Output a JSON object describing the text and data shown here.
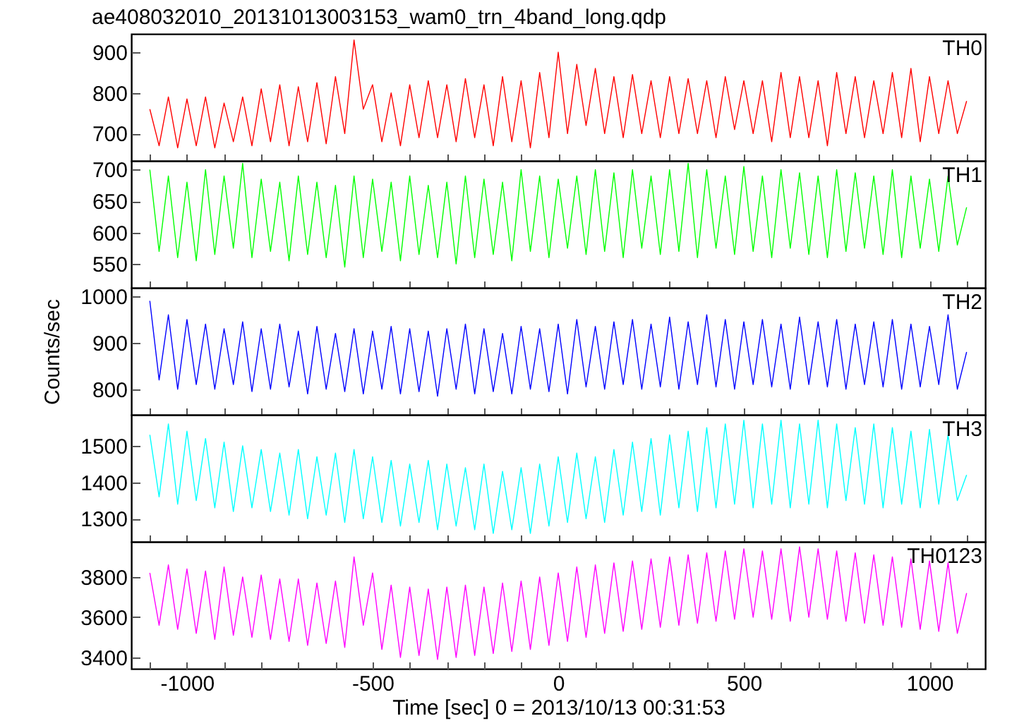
{
  "chart_data": [
    {
      "type": "line",
      "title": "ae408032010_20131013003153_wam0_trn_4band_long.qdp",
      "tick_labels": "y",
      "xlim": [
        -1150,
        1150
      ],
      "ylim": [
        633,
        945
      ],
      "yticks": [
        700,
        800,
        900
      ],
      "xticks": [
        {
          "value": -1100,
          "label": null
        },
        -1000,
        {
          "value": -900,
          "label": null
        },
        {
          "value": -800,
          "label": null
        },
        {
          "value": -700,
          "label": null
        },
        {
          "value": -600,
          "label": null
        },
        -500,
        {
          "value": -400,
          "label": null
        },
        {
          "value": -300,
          "label": null
        },
        {
          "value": -200,
          "label": null
        },
        {
          "value": -100,
          "label": null
        },
        0,
        {
          "value": 100,
          "label": null
        },
        {
          "value": 200,
          "label": null
        },
        {
          "value": 300,
          "label": null
        },
        {
          "value": 400,
          "label": null
        },
        500,
        {
          "value": 600,
          "label": null
        },
        {
          "value": 700,
          "label": null
        },
        {
          "value": 800,
          "label": null
        },
        {
          "value": 900,
          "label": null
        },
        1000,
        {
          "value": 1100,
          "label": null
        }
      ],
      "x": [
        -1100,
        -1075,
        -1050,
        -1025,
        -1000,
        -975,
        -950,
        -925,
        -900,
        -875,
        -850,
        -825,
        -800,
        -775,
        -750,
        -725,
        -700,
        -675,
        -650,
        -625,
        -600,
        -575,
        -550,
        -525,
        -500,
        -475,
        -450,
        -425,
        -400,
        -375,
        -350,
        -325,
        -300,
        -275,
        -250,
        -225,
        -200,
        -175,
        -150,
        -125,
        -100,
        -75,
        -50,
        -25,
        0,
        25,
        50,
        75,
        100,
        125,
        150,
        175,
        200,
        225,
        250,
        275,
        300,
        325,
        350,
        375,
        400,
        425,
        450,
        475,
        500,
        525,
        550,
        575,
        600,
        625,
        650,
        675,
        700,
        725,
        750,
        775,
        800,
        825,
        850,
        875,
        900,
        925,
        950,
        975,
        1000,
        1025,
        1050,
        1075,
        1100
      ],
      "series": [
        {
          "name": "TH0",
          "color": "#ff0000",
          "values": [
            760,
            670,
            790,
            665,
            785,
            670,
            790,
            665,
            775,
            680,
            790,
            670,
            810,
            680,
            820,
            670,
            815,
            680,
            825,
            675,
            840,
            700,
            930,
            760,
            820,
            680,
            800,
            670,
            820,
            690,
            830,
            690,
            820,
            680,
            835,
            690,
            820,
            670,
            840,
            680,
            830,
            665,
            850,
            690,
            900,
            700,
            870,
            720,
            860,
            700,
            840,
            690,
            845,
            700,
            830,
            690,
            840,
            700,
            835,
            700,
            830,
            690,
            840,
            710,
            830,
            700,
            830,
            680,
            850,
            690,
            840,
            690,
            830,
            670,
            850,
            700,
            840,
            690,
            830,
            700,
            850,
            690,
            860,
            680,
            840,
            700,
            830,
            700,
            780
          ]
        }
      ]
    },
    {
      "type": "line",
      "tick_labels": "y",
      "xlim": [
        -1150,
        1150
      ],
      "ylim": [
        512,
        714
      ],
      "yticks": [
        550,
        600,
        650,
        700
      ],
      "xticks": [
        {
          "value": -1100,
          "label": null
        },
        -1000,
        {
          "value": -900,
          "label": null
        },
        {
          "value": -800,
          "label": null
        },
        {
          "value": -700,
          "label": null
        },
        {
          "value": -600,
          "label": null
        },
        -500,
        {
          "value": -400,
          "label": null
        },
        {
          "value": -300,
          "label": null
        },
        {
          "value": -200,
          "label": null
        },
        {
          "value": -100,
          "label": null
        },
        0,
        {
          "value": 100,
          "label": null
        },
        {
          "value": 200,
          "label": null
        },
        {
          "value": 300,
          "label": null
        },
        {
          "value": 400,
          "label": null
        },
        500,
        {
          "value": 600,
          "label": null
        },
        {
          "value": 700,
          "label": null
        },
        {
          "value": 800,
          "label": null
        },
        {
          "value": 900,
          "label": null
        },
        1000,
        {
          "value": 1100,
          "label": null
        }
      ],
      "x": [
        -1100,
        -1075,
        -1050,
        -1025,
        -1000,
        -975,
        -950,
        -925,
        -900,
        -875,
        -850,
        -825,
        -800,
        -775,
        -750,
        -725,
        -700,
        -675,
        -650,
        -625,
        -600,
        -575,
        -550,
        -525,
        -500,
        -475,
        -450,
        -425,
        -400,
        -375,
        -350,
        -325,
        -300,
        -275,
        -250,
        -225,
        -200,
        -175,
        -150,
        -125,
        -100,
        -75,
        -50,
        -25,
        0,
        25,
        50,
        75,
        100,
        125,
        150,
        175,
        200,
        225,
        250,
        275,
        300,
        325,
        350,
        375,
        400,
        425,
        450,
        475,
        500,
        525,
        550,
        575,
        600,
        625,
        650,
        675,
        700,
        725,
        750,
        775,
        800,
        825,
        850,
        875,
        900,
        925,
        950,
        975,
        1000,
        1025,
        1050,
        1075,
        1100
      ],
      "series": [
        {
          "name": "TH1",
          "color": "#00ff00",
          "values": [
            700,
            570,
            690,
            560,
            680,
            555,
            700,
            565,
            690,
            575,
            710,
            560,
            685,
            570,
            680,
            555,
            690,
            565,
            680,
            560,
            675,
            545,
            690,
            560,
            685,
            570,
            680,
            555,
            690,
            565,
            675,
            560,
            680,
            550,
            690,
            560,
            685,
            565,
            680,
            555,
            700,
            570,
            690,
            560,
            685,
            575,
            690,
            565,
            700,
            570,
            695,
            560,
            700,
            575,
            690,
            565,
            700,
            570,
            710,
            560,
            700,
            575,
            690,
            565,
            705,
            570,
            690,
            560,
            700,
            575,
            695,
            565,
            690,
            560,
            700,
            570,
            695,
            575,
            690,
            565,
            700,
            560,
            690,
            575,
            685,
            570,
            690,
            580,
            640
          ]
        }
      ]
    },
    {
      "type": "line",
      "tick_labels": "y",
      "ylabel": "Counts/sec",
      "xlim": [
        -1150,
        1150
      ],
      "ylim": [
        745,
        1018
      ],
      "yticks": [
        800,
        900,
        1000
      ],
      "xticks": [
        {
          "value": -1100,
          "label": null
        },
        -1000,
        {
          "value": -900,
          "label": null
        },
        {
          "value": -800,
          "label": null
        },
        {
          "value": -700,
          "label": null
        },
        {
          "value": -600,
          "label": null
        },
        -500,
        {
          "value": -400,
          "label": null
        },
        {
          "value": -300,
          "label": null
        },
        {
          "value": -200,
          "label": null
        },
        {
          "value": -100,
          "label": null
        },
        0,
        {
          "value": 100,
          "label": null
        },
        {
          "value": 200,
          "label": null
        },
        {
          "value": 300,
          "label": null
        },
        {
          "value": 400,
          "label": null
        },
        500,
        {
          "value": 600,
          "label": null
        },
        {
          "value": 700,
          "label": null
        },
        {
          "value": 800,
          "label": null
        },
        {
          "value": 900,
          "label": null
        },
        1000,
        {
          "value": 1100,
          "label": null
        }
      ],
      "x": [
        -1100,
        -1075,
        -1050,
        -1025,
        -1000,
        -975,
        -950,
        -925,
        -900,
        -875,
        -850,
        -825,
        -800,
        -775,
        -750,
        -725,
        -700,
        -675,
        -650,
        -625,
        -600,
        -575,
        -550,
        -525,
        -500,
        -475,
        -450,
        -425,
        -400,
        -375,
        -350,
        -325,
        -300,
        -275,
        -250,
        -225,
        -200,
        -175,
        -150,
        -125,
        -100,
        -75,
        -50,
        -25,
        0,
        25,
        50,
        75,
        100,
        125,
        150,
        175,
        200,
        225,
        250,
        275,
        300,
        325,
        350,
        375,
        400,
        425,
        450,
        475,
        500,
        525,
        550,
        575,
        600,
        625,
        650,
        675,
        700,
        725,
        750,
        775,
        800,
        825,
        850,
        875,
        900,
        925,
        950,
        975,
        1000,
        1025,
        1050,
        1075,
        1100
      ],
      "series": [
        {
          "name": "TH2",
          "color": "#0000ff",
          "values": [
            990,
            820,
            960,
            800,
            950,
            810,
            940,
            800,
            930,
            810,
            945,
            795,
            930,
            800,
            940,
            805,
            925,
            790,
            935,
            800,
            920,
            795,
            930,
            790,
            925,
            800,
            935,
            790,
            930,
            795,
            925,
            785,
            930,
            800,
            940,
            790,
            930,
            795,
            920,
            790,
            935,
            800,
            930,
            795,
            940,
            790,
            950,
            805,
            935,
            800,
            945,
            810,
            950,
            800,
            940,
            805,
            955,
            800,
            945,
            810,
            960,
            805,
            950,
            800,
            945,
            810,
            950,
            805,
            940,
            800,
            955,
            810,
            945,
            805,
            950,
            800,
            940,
            810,
            945,
            805,
            950,
            800,
            940,
            805,
            935,
            810,
            960,
            800,
            880
          ]
        }
      ]
    },
    {
      "type": "line",
      "tick_labels": "y",
      "xlim": [
        -1150,
        1150
      ],
      "ylim": [
        1237,
        1585
      ],
      "yticks": [
        1300,
        1400,
        1500
      ],
      "xticks": [
        {
          "value": -1100,
          "label": null
        },
        -1000,
        {
          "value": -900,
          "label": null
        },
        {
          "value": -800,
          "label": null
        },
        {
          "value": -700,
          "label": null
        },
        {
          "value": -600,
          "label": null
        },
        -500,
        {
          "value": -400,
          "label": null
        },
        {
          "value": -300,
          "label": null
        },
        {
          "value": -200,
          "label": null
        },
        {
          "value": -100,
          "label": null
        },
        0,
        {
          "value": 100,
          "label": null
        },
        {
          "value": 200,
          "label": null
        },
        {
          "value": 300,
          "label": null
        },
        {
          "value": 400,
          "label": null
        },
        500,
        {
          "value": 600,
          "label": null
        },
        {
          "value": 700,
          "label": null
        },
        {
          "value": 800,
          "label": null
        },
        {
          "value": 900,
          "label": null
        },
        1000,
        {
          "value": 1100,
          "label": null
        }
      ],
      "x": [
        -1100,
        -1075,
        -1050,
        -1025,
        -1000,
        -975,
        -950,
        -925,
        -900,
        -875,
        -850,
        -825,
        -800,
        -775,
        -750,
        -725,
        -700,
        -675,
        -650,
        -625,
        -600,
        -575,
        -550,
        -525,
        -500,
        -475,
        -450,
        -425,
        -400,
        -375,
        -350,
        -325,
        -300,
        -275,
        -250,
        -225,
        -200,
        -175,
        -150,
        -125,
        -100,
        -75,
        -50,
        -25,
        0,
        25,
        50,
        75,
        100,
        125,
        150,
        175,
        200,
        225,
        250,
        275,
        300,
        325,
        350,
        375,
        400,
        425,
        450,
        475,
        500,
        525,
        550,
        575,
        600,
        625,
        650,
        675,
        700,
        725,
        750,
        775,
        800,
        825,
        850,
        875,
        900,
        925,
        950,
        975,
        1000,
        1025,
        1050,
        1075,
        1100
      ],
      "series": [
        {
          "name": "TH3",
          "color": "#00ffff",
          "values": [
            1530,
            1360,
            1560,
            1340,
            1540,
            1350,
            1520,
            1330,
            1510,
            1320,
            1500,
            1330,
            1490,
            1320,
            1480,
            1310,
            1490,
            1300,
            1470,
            1310,
            1480,
            1290,
            1490,
            1300,
            1470,
            1290,
            1460,
            1280,
            1450,
            1290,
            1460,
            1270,
            1450,
            1280,
            1440,
            1270,
            1450,
            1260,
            1430,
            1270,
            1440,
            1260,
            1450,
            1280,
            1470,
            1290,
            1480,
            1300,
            1470,
            1290,
            1490,
            1310,
            1510,
            1320,
            1520,
            1310,
            1530,
            1330,
            1540,
            1320,
            1550,
            1330,
            1560,
            1340,
            1570,
            1330,
            1560,
            1340,
            1570,
            1330,
            1560,
            1340,
            1570,
            1330,
            1560,
            1350,
            1550,
            1340,
            1560,
            1330,
            1550,
            1340,
            1540,
            1330,
            1545,
            1340,
            1530,
            1350,
            1420
          ]
        }
      ]
    },
    {
      "type": "line",
      "xlabel": "Time [sec] 0 = 2013/10/13 00:31:53",
      "xlim": [
        -1150,
        1150
      ],
      "ylim": [
        3344,
        3975
      ],
      "yticks": [
        3400,
        3600,
        3800
      ],
      "xticks": [
        {
          "value": -1100,
          "label": null
        },
        -1000,
        {
          "value": -900,
          "label": null
        },
        {
          "value": -800,
          "label": null
        },
        {
          "value": -700,
          "label": null
        },
        {
          "value": -600,
          "label": null
        },
        -500,
        {
          "value": -400,
          "label": null
        },
        {
          "value": -300,
          "label": null
        },
        {
          "value": -200,
          "label": null
        },
        {
          "value": -100,
          "label": null
        },
        0,
        {
          "value": 100,
          "label": null
        },
        {
          "value": 200,
          "label": null
        },
        {
          "value": 300,
          "label": null
        },
        {
          "value": 400,
          "label": null
        },
        500,
        {
          "value": 600,
          "label": null
        },
        {
          "value": 700,
          "label": null
        },
        {
          "value": 800,
          "label": null
        },
        {
          "value": 900,
          "label": null
        },
        1000,
        {
          "value": 1100,
          "label": null
        }
      ],
      "x": [
        -1100,
        -1075,
        -1050,
        -1025,
        -1000,
        -975,
        -950,
        -925,
        -900,
        -875,
        -850,
        -825,
        -800,
        -775,
        -750,
        -725,
        -700,
        -675,
        -650,
        -625,
        -600,
        -575,
        -550,
        -525,
        -500,
        -475,
        -450,
        -425,
        -400,
        -375,
        -350,
        -325,
        -300,
        -275,
        -250,
        -225,
        -200,
        -175,
        -150,
        -125,
        -100,
        -75,
        -50,
        -25,
        0,
        25,
        50,
        75,
        100,
        125,
        150,
        175,
        200,
        225,
        250,
        275,
        300,
        325,
        350,
        375,
        400,
        425,
        450,
        475,
        500,
        525,
        550,
        575,
        600,
        625,
        650,
        675,
        700,
        725,
        750,
        775,
        800,
        825,
        850,
        875,
        900,
        925,
        950,
        975,
        1000,
        1025,
        1050,
        1075,
        1100
      ],
      "series": [
        {
          "name": "TH0123",
          "color": "#ff00ff",
          "values": [
            3820,
            3560,
            3860,
            3540,
            3840,
            3520,
            3830,
            3490,
            3850,
            3510,
            3800,
            3500,
            3810,
            3490,
            3790,
            3480,
            3790,
            3460,
            3770,
            3470,
            3780,
            3450,
            3900,
            3560,
            3820,
            3440,
            3760,
            3400,
            3750,
            3410,
            3740,
            3390,
            3750,
            3400,
            3760,
            3410,
            3750,
            3420,
            3770,
            3430,
            3780,
            3440,
            3800,
            3460,
            3820,
            3480,
            3850,
            3500,
            3860,
            3520,
            3870,
            3530,
            3880,
            3540,
            3890,
            3550,
            3900,
            3560,
            3910,
            3570,
            3920,
            3580,
            3930,
            3590,
            3940,
            3600,
            3930,
            3590,
            3940,
            3580,
            3950,
            3600,
            3940,
            3590,
            3930,
            3580,
            3920,
            3570,
            3910,
            3560,
            3900,
            3550,
            3890,
            3540,
            3880,
            3530,
            3870,
            3520,
            3720
          ]
        }
      ]
    }
  ]
}
